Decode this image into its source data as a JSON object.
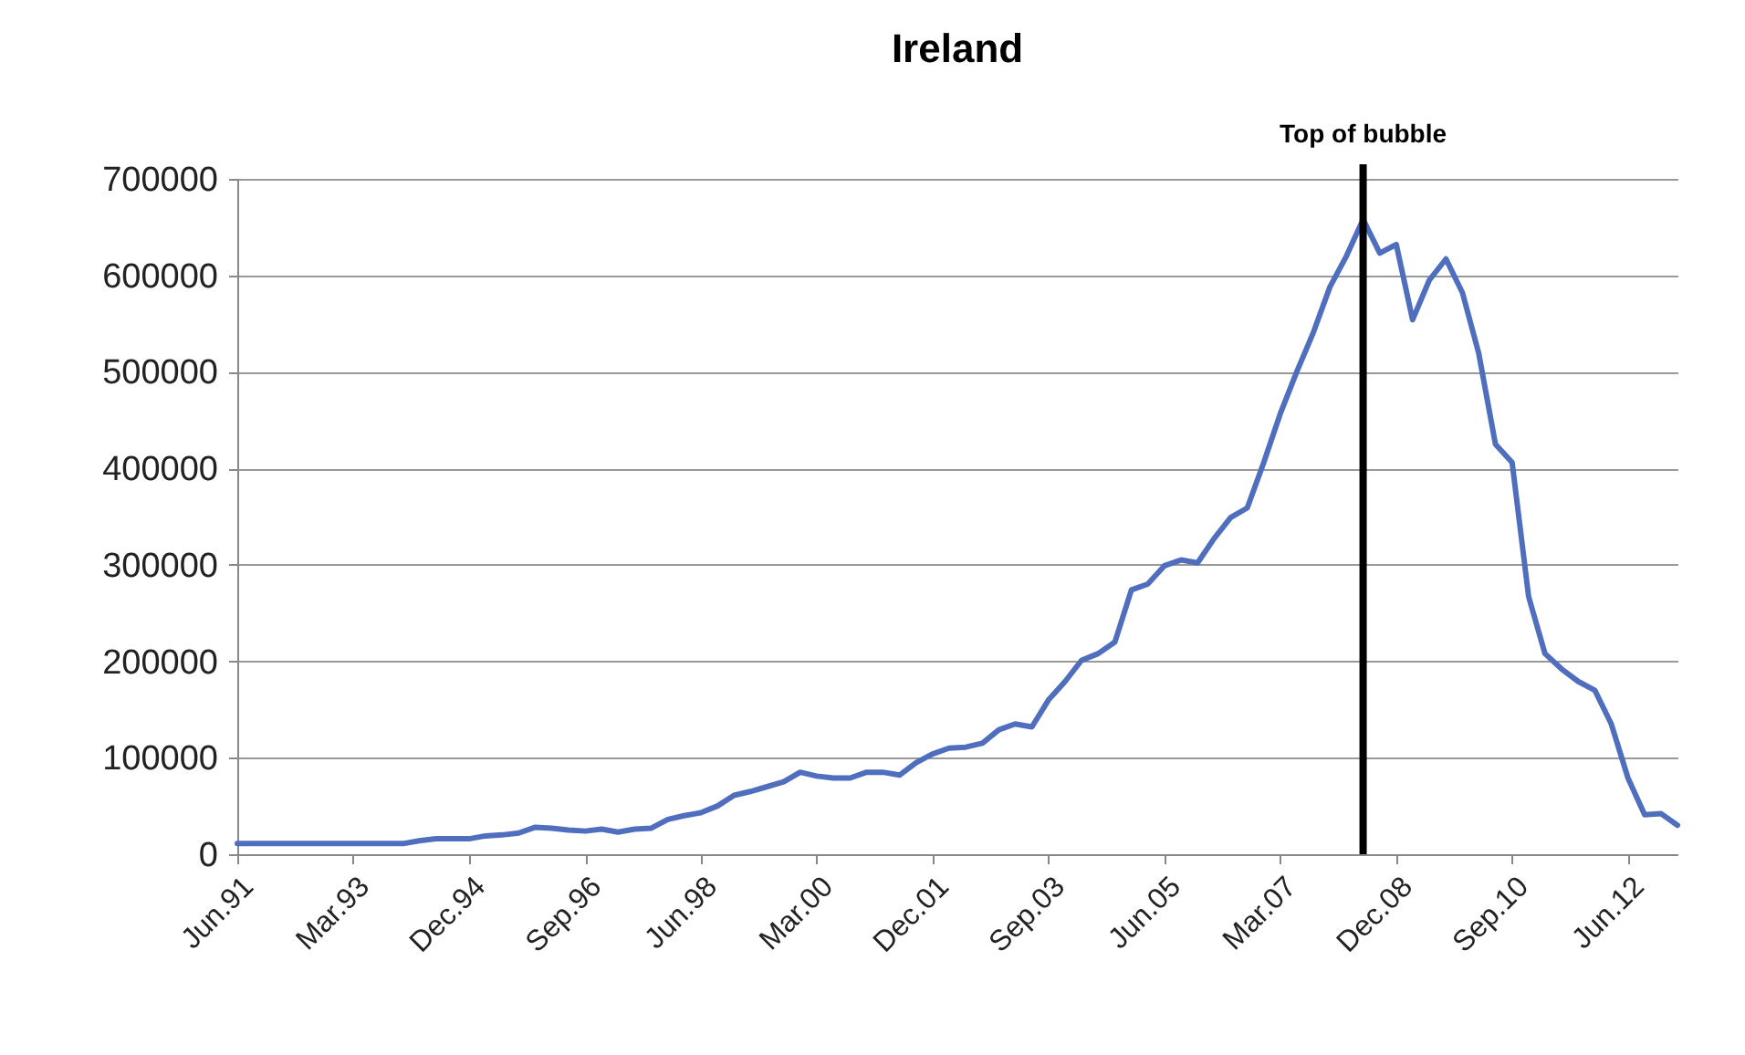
{
  "chart_data": {
    "type": "line",
    "title": "Ireland",
    "x": [
      "1991-06",
      "1991-09",
      "1991-12",
      "1992-03",
      "1992-06",
      "1992-09",
      "1992-12",
      "1993-03",
      "1993-06",
      "1993-09",
      "1993-12",
      "1994-03",
      "1994-06",
      "1994-09",
      "1994-12",
      "1995-03",
      "1995-06",
      "1995-09",
      "1995-12",
      "1996-03",
      "1996-06",
      "1996-09",
      "1996-12",
      "1997-03",
      "1997-06",
      "1997-09",
      "1997-12",
      "1998-03",
      "1998-06",
      "1998-09",
      "1998-12",
      "1999-03",
      "1999-06",
      "1999-09",
      "1999-12",
      "2000-03",
      "2000-06",
      "2000-09",
      "2000-12",
      "2001-03",
      "2001-06",
      "2001-09",
      "2001-12",
      "2002-03",
      "2002-06",
      "2002-09",
      "2002-12",
      "2003-03",
      "2003-06",
      "2003-09",
      "2003-12",
      "2004-03",
      "2004-06",
      "2004-09",
      "2004-12",
      "2005-03",
      "2005-06",
      "2005-09",
      "2005-12",
      "2006-03",
      "2006-06",
      "2006-09",
      "2006-12",
      "2007-03",
      "2007-06",
      "2007-09",
      "2007-12",
      "2008-03",
      "2008-06",
      "2008-09",
      "2008-12",
      "2009-03",
      "2009-06",
      "2009-09",
      "2009-12",
      "2010-03",
      "2010-06",
      "2010-09",
      "2010-12",
      "2011-03",
      "2011-06",
      "2011-09",
      "2011-12",
      "2012-03",
      "2012-06",
      "2012-09",
      "2012-12",
      "2013-03"
    ],
    "series": [
      {
        "color": "#4f6fbe",
        "values": [
          11000,
          11000,
          11000,
          11000,
          11000,
          11000,
          11000,
          11000,
          11000,
          11000,
          11000,
          14000,
          16000,
          16000,
          16000,
          19000,
          20000,
          22000,
          28000,
          27000,
          25000,
          24000,
          26000,
          23000,
          26000,
          27000,
          36000,
          40000,
          43000,
          50000,
          61000,
          65000,
          70000,
          75000,
          85000,
          81000,
          79000,
          79000,
          85000,
          85000,
          82000,
          95000,
          104000,
          110000,
          111000,
          115000,
          129000,
          135000,
          132000,
          160000,
          179000,
          201000,
          208000,
          220000,
          274000,
          280000,
          299000,
          305000,
          302000,
          327000,
          349000,
          359000,
          406000,
          456000,
          500000,
          541000,
          588000,
          620000,
          658000,
          623000,
          632000,
          554000,
          595000,
          617000,
          582000,
          519000,
          425000,
          406000,
          267000,
          208000,
          192000,
          179000,
          170000,
          135000,
          79000,
          41000,
          42000,
          30000
        ]
      }
    ],
    "xlim": [
      "1991-06",
      "2013-03"
    ],
    "xticks": [
      {
        "value": "1991-06",
        "label": "Jun.91"
      },
      {
        "value": "1993-03",
        "label": "Mar.93"
      },
      {
        "value": "1994-12",
        "label": "Dec.94"
      },
      {
        "value": "1996-09",
        "label": "Sep.96"
      },
      {
        "value": "1998-06",
        "label": "Jun.98"
      },
      {
        "value": "2000-03",
        "label": "Mar.00"
      },
      {
        "value": "2001-12",
        "label": "Dec.01"
      },
      {
        "value": "2003-09",
        "label": "Sep.03"
      },
      {
        "value": "2005-06",
        "label": "Jun.05"
      },
      {
        "value": "2007-03",
        "label": "Mar.07"
      },
      {
        "value": "2008-12",
        "label": "Dec.08"
      },
      {
        "value": "2010-09",
        "label": "Sep.10"
      },
      {
        "value": "2012-06",
        "label": "Jun.12"
      }
    ],
    "ylim": [
      0,
      700000
    ],
    "yticks": [
      0,
      100000,
      200000,
      300000,
      400000,
      500000,
      600000,
      700000
    ],
    "grid": "y",
    "legend": false,
    "marker": "none",
    "line_style": "solid",
    "ref_lines": [
      {
        "axis": "x",
        "value": "2008-06",
        "label": "Top of bubble",
        "color": "#000000"
      }
    ]
  }
}
